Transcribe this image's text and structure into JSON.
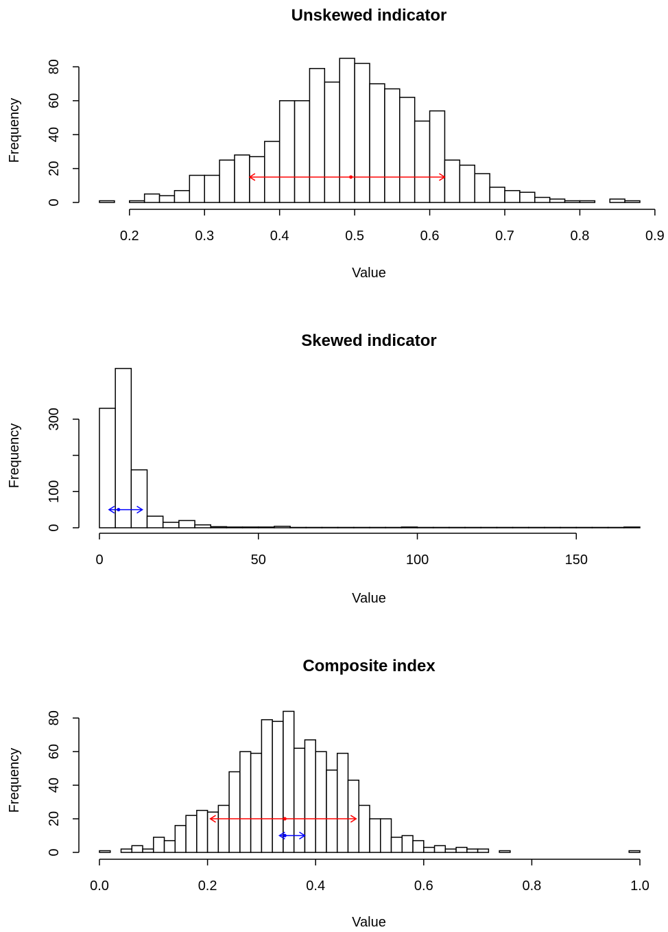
{
  "chart_data": [
    {
      "type": "bar",
      "title": "Unskewed indicator",
      "xlabel": "Value",
      "ylabel": "Frequency",
      "xlim": [
        0.16,
        0.88
      ],
      "ylim": [
        0,
        85
      ],
      "xticks": [
        0.2,
        0.3,
        0.4,
        0.5,
        0.6,
        0.7,
        0.8,
        0.9
      ],
      "xtick_labels": [
        "0.2",
        "0.3",
        "0.4",
        "0.5",
        "0.6",
        "0.7",
        "0.8",
        "0.9"
      ],
      "yticks": [
        0,
        20,
        40,
        60,
        80
      ],
      "ytick_labels": [
        "0",
        "20",
        "40",
        "60",
        "80"
      ],
      "bin_start": 0.16,
      "bin_width": 0.02,
      "values": [
        1,
        0,
        1,
        5,
        4,
        7,
        16,
        16,
        25,
        28,
        27,
        36,
        60,
        60,
        79,
        71,
        85,
        82,
        70,
        67,
        62,
        48,
        54,
        25,
        22,
        17,
        9,
        7,
        6,
        3,
        2,
        1,
        1,
        0,
        2,
        1
      ],
      "intervals": [
        {
          "color": "#ff0000",
          "from": 0.36,
          "to": 0.62,
          "center": 0.495,
          "y": 15
        }
      ]
    },
    {
      "type": "bar",
      "title": "Skewed indicator",
      "xlabel": "Value",
      "ylabel": "Frequency",
      "xlim": [
        0,
        170
      ],
      "ylim": [
        0,
        400
      ],
      "xticks": [
        0,
        50,
        100,
        150
      ],
      "xtick_labels": [
        "0",
        "50",
        "100",
        "150"
      ],
      "yticks": [
        0,
        100,
        200,
        300
      ],
      "ytick_labels": [
        "0",
        "100",
        "",
        "300"
      ],
      "bin_start": 0,
      "bin_width": 5,
      "values": [
        330,
        440,
        160,
        32,
        15,
        20,
        8,
        3,
        2,
        2,
        2,
        4,
        1,
        1,
        1,
        1,
        1,
        1,
        1,
        2,
        1,
        1,
        1,
        1,
        1,
        1,
        1,
        1,
        1,
        1,
        1,
        1,
        1,
        2
      ],
      "intervals": [
        {
          "color": "#0000ff",
          "from": 3,
          "to": 13.5,
          "center": 6,
          "y": 50
        }
      ]
    },
    {
      "type": "bar",
      "title": "Composite index",
      "xlabel": "Value",
      "ylabel": "Frequency",
      "xlim": [
        0,
        1
      ],
      "ylim": [
        0,
        85
      ],
      "xticks": [
        0,
        0.2,
        0.4,
        0.6,
        0.8,
        1.0
      ],
      "xtick_labels": [
        "0.0",
        "0.2",
        "0.4",
        "0.6",
        "0.8",
        "1.0"
      ],
      "yticks": [
        0,
        20,
        40,
        60,
        80
      ],
      "ytick_labels": [
        "0",
        "20",
        "40",
        "60",
        "80"
      ],
      "bin_start": 0,
      "bin_width": 0.02,
      "values": [
        1,
        0,
        2,
        4,
        2,
        9,
        7,
        16,
        22,
        25,
        24,
        28,
        48,
        60,
        59,
        79,
        78,
        84,
        62,
        67,
        60,
        49,
        59,
        43,
        28,
        20,
        20,
        9,
        10,
        7,
        3,
        4,
        2,
        3,
        2,
        2,
        0,
        1,
        0,
        0,
        0,
        0,
        0,
        0,
        0,
        0,
        0,
        0,
        0,
        1
      ],
      "intervals": [
        {
          "color": "#ff0000",
          "from": 0.205,
          "to": 0.475,
          "center": 0.343,
          "y": 20
        },
        {
          "color": "#0000ff",
          "from": 0.333,
          "to": 0.38,
          "center": 0.343,
          "y": 10
        }
      ]
    }
  ]
}
